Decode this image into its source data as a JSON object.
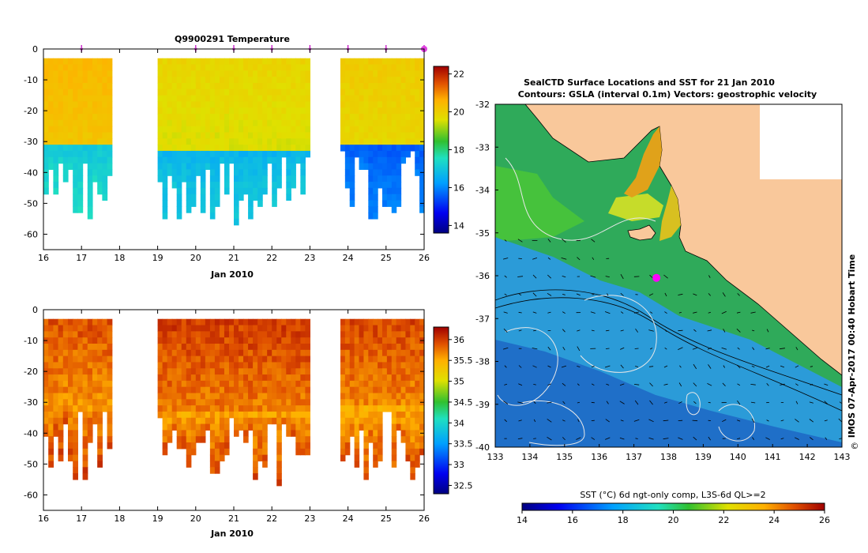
{
  "figure": {
    "credit": "IMOS 07-Apr-2017 00:40 Hobart Time",
    "copyright": "©"
  },
  "chart_data": [
    {
      "type": "heatmap",
      "id": "temperature",
      "title": "Q9900291  Temperature",
      "xlabel": "Jan 2010",
      "ylabel": "",
      "xlim": [
        16,
        26
      ],
      "ylim": [
        -65,
        0
      ],
      "x_ticks": [
        "16",
        "17",
        "18",
        "19",
        "20",
        "21",
        "22",
        "23",
        "24",
        "25",
        "26"
      ],
      "y_ticks": [
        "0",
        "-10",
        "-20",
        "-30",
        "-40",
        "-50",
        "-60"
      ],
      "colorbar": {
        "min": 13.6,
        "max": 22.4,
        "ticks": [
          "22",
          "20",
          "18",
          "16",
          "14"
        ]
      },
      "profile_markers": [
        17,
        20,
        21,
        22,
        23,
        24,
        25,
        26
      ],
      "segments": [
        {
          "x_start": 16.0,
          "x_end": 17.8,
          "top_depth": -3,
          "surface_value": 20.6,
          "bottom_value": 17.3,
          "mixed_depth": -31
        },
        {
          "x_start": 19.0,
          "x_end": 23.0,
          "top_depth": -3,
          "surface_value": 20.0,
          "bottom_value": 16.9,
          "mixed_depth": -33
        },
        {
          "x_start": 23.8,
          "x_end": 26.0,
          "top_depth": -3,
          "surface_value": 20.2,
          "bottom_value": 15.8,
          "mixed_depth": -31
        }
      ]
    },
    {
      "type": "heatmap",
      "id": "salinity",
      "title": "",
      "xlabel": "Jan 2010",
      "ylabel": "",
      "xlim": [
        16,
        26
      ],
      "ylim": [
        -65,
        0
      ],
      "x_ticks": [
        "16",
        "17",
        "18",
        "19",
        "20",
        "21",
        "22",
        "23",
        "24",
        "25",
        "26"
      ],
      "y_ticks": [
        "0",
        "-10",
        "-20",
        "-30",
        "-40",
        "-50",
        "-60"
      ],
      "colorbar": {
        "min": 32.3,
        "max": 36.3,
        "ticks": [
          "36",
          "35.5",
          "35",
          "34.5",
          "34",
          "33.5",
          "33",
          "32.5"
        ]
      },
      "segments": [
        {
          "x_start": 16.0,
          "x_end": 17.8,
          "top_depth": -3,
          "surface_value": 36.05,
          "bottom_value": 35.85,
          "mixed_depth": -31
        },
        {
          "x_start": 19.0,
          "x_end": 23.0,
          "top_depth": -3,
          "surface_value": 36.15,
          "bottom_value": 35.8,
          "mixed_depth": -33
        },
        {
          "x_start": 23.8,
          "x_end": 26.0,
          "top_depth": -3,
          "surface_value": 36.1,
          "bottom_value": 35.75,
          "mixed_depth": -31
        }
      ]
    },
    {
      "type": "heatmap",
      "id": "sst-map",
      "title": "SealCTD Surface Locations and SST for 21 Jan 2010",
      "subtitle": "Contours: GSLA (interval 0.1m) Vectors: geostrophic velocity",
      "xlim": [
        133,
        143
      ],
      "ylim": [
        -40,
        -32
      ],
      "x_ticks": [
        "133",
        "134",
        "135",
        "136",
        "137",
        "138",
        "139",
        "140",
        "141",
        "142",
        "143"
      ],
      "y_ticks": [
        "-32",
        "-33",
        "-34",
        "-35",
        "-36",
        "-37",
        "-38",
        "-39",
        "-40"
      ],
      "colorbar": {
        "label": "SST (°C) 6d ngt-only comp, L3S-6d QL>=2",
        "min": 14,
        "max": 26,
        "ticks": [
          "14",
          "16",
          "18",
          "20",
          "22",
          "24",
          "26"
        ]
      },
      "seal_locations": [
        {
          "lon": 137.65,
          "lat": -36.05
        }
      ]
    }
  ]
}
